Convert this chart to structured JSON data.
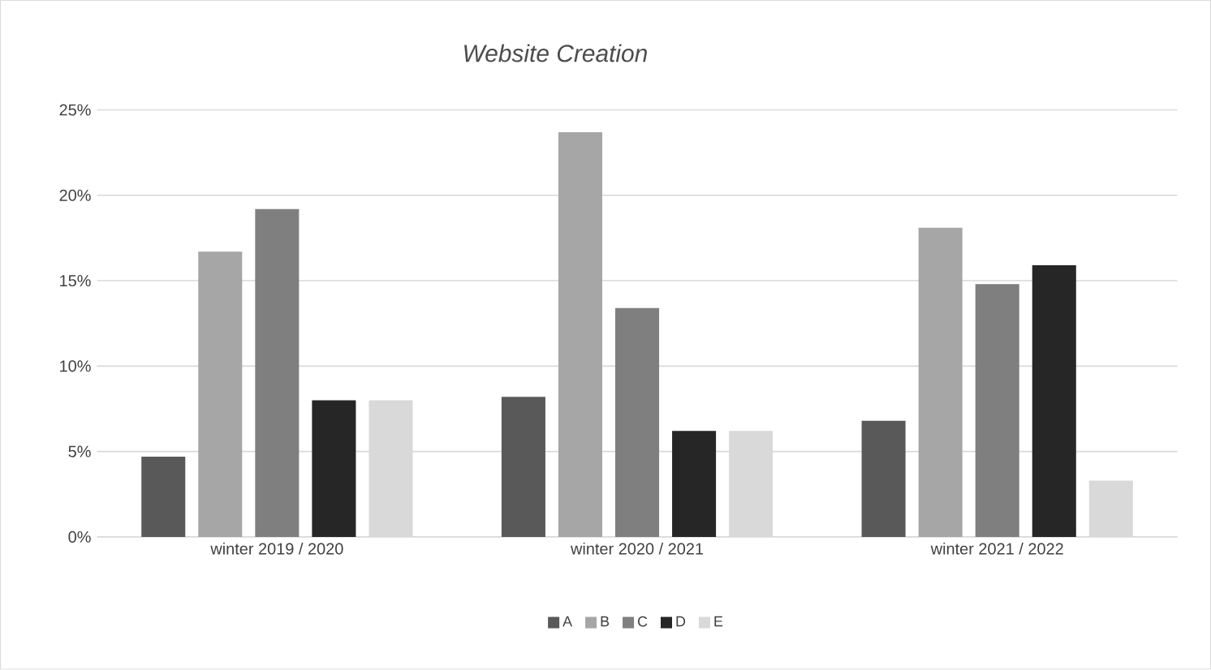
{
  "chart_data": {
    "type": "bar",
    "title": "Website Creation",
    "categories": [
      "winter 2019 / 2020",
      "winter 2020 / 2021",
      "winter 2021 / 2022"
    ],
    "series": [
      {
        "name": "A",
        "color": "#595959",
        "values": [
          4.7,
          8.2,
          6.8
        ]
      },
      {
        "name": "B",
        "color": "#a6a6a6",
        "values": [
          16.7,
          23.7,
          18.1
        ]
      },
      {
        "name": "C",
        "color": "#7f7f7f",
        "values": [
          19.2,
          13.4,
          14.8
        ]
      },
      {
        "name": "D",
        "color": "#262626",
        "values": [
          8.0,
          6.2,
          15.9
        ]
      },
      {
        "name": "E",
        "color": "#d9d9d9",
        "values": [
          8.0,
          6.2,
          3.3
        ]
      }
    ],
    "ylim": [
      0,
      25
    ],
    "yticks": [
      {
        "value": 0,
        "label": "0%"
      },
      {
        "value": 5,
        "label": "5%"
      },
      {
        "value": 10,
        "label": "10%"
      },
      {
        "value": 15,
        "label": "15%"
      },
      {
        "value": 20,
        "label": "20%"
      },
      {
        "value": 25,
        "label": "25%"
      }
    ],
    "grid": "y",
    "legend": "bottom"
  }
}
